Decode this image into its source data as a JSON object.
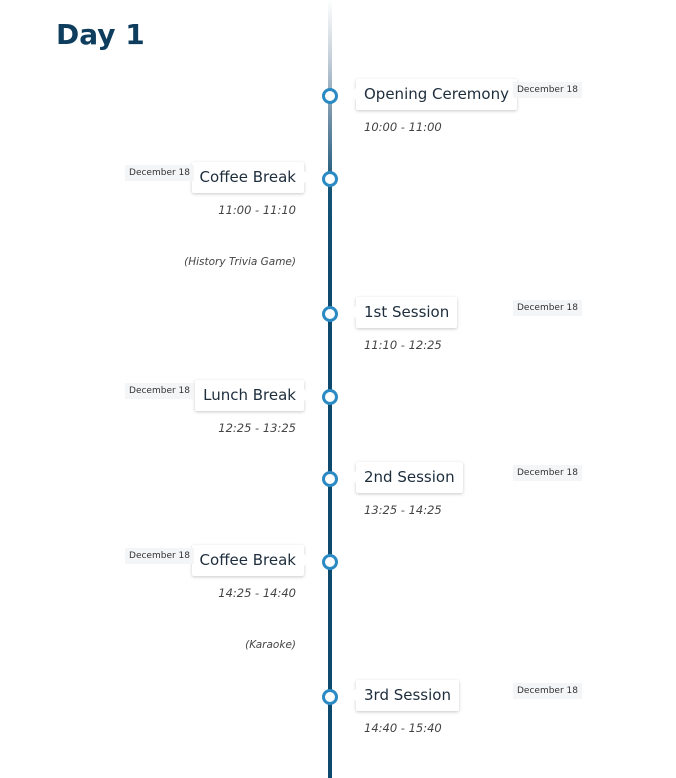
{
  "day_title": "Day 1",
  "events": [
    {
      "title": "Opening Ceremony",
      "date": "December 18",
      "time": "10:00 - 11:00",
      "note": ""
    },
    {
      "title": "Coffee Break",
      "date": "December 18",
      "time": "11:00 - 11:10",
      "note": "(History Trivia Game)"
    },
    {
      "title": "1st Session",
      "date": "December 18",
      "time": "11:10 - 12:25",
      "note": ""
    },
    {
      "title": "Lunch Break",
      "date": "December 18",
      "time": "12:25 - 13:25",
      "note": ""
    },
    {
      "title": "2nd Session",
      "date": "December 18",
      "time": "13:25 - 14:25",
      "note": ""
    },
    {
      "title": "Coffee Break",
      "date": "December 18",
      "time": "14:25 - 14:40",
      "note": "(Karaoke)"
    },
    {
      "title": "3rd Session",
      "date": "December 18",
      "time": "14:40 - 15:40",
      "note": ""
    }
  ],
  "colors": {
    "title": "#0e3d5e",
    "line": "#0e4a6e",
    "dot_border": "#2b8ac4"
  }
}
